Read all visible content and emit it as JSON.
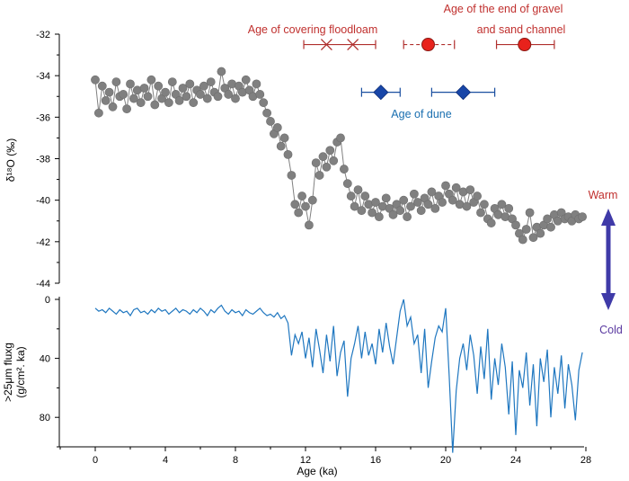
{
  "chart_data": [
    {
      "type": "scatter",
      "panel": "top",
      "ylabel": "δ¹⁸O (‰)",
      "ylim": [
        -44,
        -32
      ],
      "yticks": [
        -32,
        -34,
        -36,
        -38,
        -40,
        -42,
        -44
      ],
      "y_inverted": false,
      "series": [
        {
          "style": "gray circles joined by a thin line",
          "color": "#808080",
          "x": [
            0.0,
            0.2,
            0.4,
            0.6,
            0.8,
            1.0,
            1.2,
            1.4,
            1.6,
            1.8,
            2.0,
            2.2,
            2.4,
            2.6,
            2.8,
            3.0,
            3.2,
            3.4,
            3.6,
            3.8,
            4.0,
            4.2,
            4.4,
            4.6,
            4.8,
            5.0,
            5.2,
            5.4,
            5.6,
            5.8,
            6.0,
            6.2,
            6.4,
            6.6,
            6.8,
            7.0,
            7.2,
            7.4,
            7.6,
            7.8,
            8.0,
            8.2,
            8.4,
            8.6,
            8.8,
            9.0,
            9.2,
            9.4,
            9.6,
            9.8,
            10.0,
            10.2,
            10.4,
            10.6,
            10.8,
            11.0,
            11.2,
            11.4,
            11.6,
            11.8,
            12.0,
            12.2,
            12.4,
            12.6,
            12.8,
            13.0,
            13.2,
            13.4,
            13.6,
            13.8,
            14.0,
            14.2,
            14.4,
            14.6,
            14.8,
            15.0,
            15.2,
            15.4,
            15.6,
            15.8,
            16.0,
            16.2,
            16.4,
            16.6,
            16.8,
            17.0,
            17.2,
            17.4,
            17.6,
            17.8,
            18.0,
            18.2,
            18.4,
            18.6,
            18.8,
            19.0,
            19.2,
            19.4,
            19.6,
            19.8,
            20.0,
            20.2,
            20.4,
            20.6,
            20.8,
            21.0,
            21.2,
            21.4,
            21.6,
            21.8,
            22.0,
            22.2,
            22.4,
            22.6,
            22.8,
            23.0,
            23.2,
            23.4,
            23.6,
            23.8,
            24.0,
            24.2,
            24.4,
            24.6,
            24.8,
            25.0,
            25.2,
            25.4,
            25.6,
            25.8,
            26.0,
            26.2,
            26.4,
            26.6,
            26.8,
            27.0,
            27.2,
            27.4,
            27.6,
            27.8
          ],
          "y": [
            -34.2,
            -35.8,
            -34.5,
            -35.2,
            -34.8,
            -35.5,
            -34.3,
            -35.0,
            -34.9,
            -35.6,
            -34.4,
            -35.1,
            -34.7,
            -35.3,
            -34.6,
            -35.0,
            -34.2,
            -35.4,
            -34.5,
            -35.1,
            -34.8,
            -35.3,
            -34.3,
            -34.9,
            -35.2,
            -34.6,
            -35.0,
            -34.4,
            -35.3,
            -34.7,
            -34.9,
            -34.5,
            -35.1,
            -34.3,
            -34.8,
            -35.0,
            -33.8,
            -34.6,
            -34.9,
            -34.4,
            -35.1,
            -34.5,
            -34.8,
            -34.2,
            -34.7,
            -35.0,
            -34.4,
            -34.9,
            -35.3,
            -35.8,
            -36.2,
            -36.8,
            -36.5,
            -37.4,
            -37.0,
            -37.8,
            -38.8,
            -40.2,
            -40.6,
            -39.8,
            -40.3,
            -41.2,
            -40.0,
            -38.2,
            -38.8,
            -37.9,
            -38.4,
            -37.6,
            -38.1,
            -37.2,
            -37.0,
            -38.5,
            -39.2,
            -39.8,
            -40.3,
            -39.5,
            -40.5,
            -39.8,
            -40.2,
            -40.6,
            -40.1,
            -40.8,
            -40.3,
            -39.9,
            -40.4,
            -40.7,
            -40.2,
            -40.5,
            -40.0,
            -40.8,
            -40.3,
            -39.7,
            -40.1,
            -40.5,
            -39.9,
            -40.2,
            -39.6,
            -40.4,
            -39.8,
            -40.1,
            -39.3,
            -39.7,
            -40.0,
            -39.4,
            -40.2,
            -39.6,
            -40.3,
            -39.5,
            -40.1,
            -39.8,
            -40.6,
            -40.2,
            -40.9,
            -41.1,
            -40.4,
            -40.7,
            -40.2,
            -40.8,
            -40.4,
            -40.9,
            -41.2,
            -41.6,
            -41.9,
            -41.4,
            -40.6,
            -41.8,
            -41.3,
            -41.6,
            -41.2,
            -40.9,
            -41.3,
            -40.7,
            -41.0,
            -40.6,
            -40.9,
            -40.8,
            -41.0,
            -40.7,
            -40.9,
            -40.8
          ]
        }
      ],
      "dating": [
        {
          "label": "Age of covering floodloam",
          "color": "#b0302e",
          "marker": "x",
          "range_line": [
            11.9,
            16.0
          ],
          "points": [
            13.2,
            14.7
          ],
          "y": -32.5
        },
        {
          "label": "",
          "color": "#b0302e",
          "marker": "circle",
          "range_line": [
            17.6,
            20.5
          ],
          "dashed": true,
          "points": [
            19.0
          ],
          "y": -32.5
        },
        {
          "label": "Age of the end of gravel and sand channel",
          "color": "#b0302e",
          "marker": "circle",
          "range_line": [
            22.9,
            26.2
          ],
          "points": [
            24.5
          ],
          "y": -32.5
        },
        {
          "label": "Age of dune",
          "color": "#1a4fa0",
          "marker": "diamond",
          "range_line_1": [
            15.2,
            17.4
          ],
          "range_line_2": [
            19.2,
            22.8
          ],
          "points": [
            16.3,
            21.0
          ],
          "y": -34.8
        }
      ],
      "annotations": [
        {
          "text": "Age of covering floodloam",
          "color": "#c0302e"
        },
        {
          "text": "Age of the end of gravel",
          "color": "#c0302e"
        },
        {
          "text": "and sand channel",
          "color": "#c0302e"
        },
        {
          "text": "Age of dune",
          "color": "#1a6fb0"
        },
        {
          "text": "Warm",
          "color": "#c0302e"
        },
        {
          "text": "Cold",
          "color": "#5a3aa0"
        }
      ]
    },
    {
      "type": "line",
      "panel": "bottom",
      "xlabel": "Age (ka)",
      "xlim": [
        -2,
        28
      ],
      "xticks": [
        0,
        4,
        8,
        12,
        16,
        20,
        24,
        28
      ],
      "ylabel_line1": ">25μm fluxg",
      "ylabel_line2": "(g/cm². ka)",
      "ylim": [
        0,
        100
      ],
      "yticks": [
        0,
        40,
        80
      ],
      "y_inverted": true,
      "series": [
        {
          "color": "#1f77c0",
          "x": [
            0.0,
            0.2,
            0.4,
            0.6,
            0.8,
            1.0,
            1.2,
            1.4,
            1.6,
            1.8,
            2.0,
            2.2,
            2.4,
            2.6,
            2.8,
            3.0,
            3.2,
            3.4,
            3.6,
            3.8,
            4.0,
            4.2,
            4.4,
            4.6,
            4.8,
            5.0,
            5.2,
            5.4,
            5.6,
            5.8,
            6.0,
            6.2,
            6.4,
            6.6,
            6.8,
            7.0,
            7.2,
            7.4,
            7.6,
            7.8,
            8.0,
            8.2,
            8.4,
            8.6,
            8.8,
            9.0,
            9.2,
            9.4,
            9.6,
            9.8,
            10.0,
            10.2,
            10.4,
            10.6,
            10.8,
            11.0,
            11.2,
            11.4,
            11.6,
            11.8,
            12.0,
            12.2,
            12.4,
            12.6,
            12.8,
            13.0,
            13.2,
            13.4,
            13.6,
            13.8,
            14.0,
            14.2,
            14.4,
            14.6,
            14.8,
            15.0,
            15.2,
            15.4,
            15.6,
            15.8,
            16.0,
            16.2,
            16.4,
            16.6,
            16.8,
            17.0,
            17.2,
            17.4,
            17.6,
            17.8,
            18.0,
            18.2,
            18.4,
            18.6,
            18.8,
            19.0,
            19.2,
            19.4,
            19.6,
            19.8,
            20.0,
            20.2,
            20.4,
            20.6,
            20.8,
            21.0,
            21.2,
            21.4,
            21.6,
            21.8,
            22.0,
            22.2,
            22.4,
            22.6,
            22.8,
            23.0,
            23.2,
            23.4,
            23.6,
            23.8,
            24.0,
            24.2,
            24.4,
            24.6,
            24.8,
            25.0,
            25.2,
            25.4,
            25.6,
            25.8,
            26.0,
            26.2,
            26.4,
            26.6,
            26.8,
            27.0,
            27.2,
            27.4,
            27.6,
            27.8
          ],
          "y": [
            6,
            8,
            7,
            9,
            6,
            8,
            10,
            7,
            9,
            8,
            11,
            7,
            6,
            9,
            8,
            10,
            7,
            9,
            6,
            8,
            7,
            10,
            8,
            6,
            9,
            7,
            8,
            10,
            7,
            9,
            6,
            8,
            11,
            7,
            9,
            6,
            4,
            8,
            10,
            7,
            9,
            8,
            11,
            7,
            9,
            10,
            8,
            6,
            9,
            11,
            10,
            12,
            9,
            13,
            11,
            16,
            38,
            24,
            30,
            22,
            40,
            26,
            46,
            20,
            34,
            50,
            24,
            42,
            18,
            52,
            36,
            28,
            66,
            40,
            30,
            18,
            40,
            22,
            38,
            30,
            44,
            20,
            36,
            16,
            32,
            44,
            26,
            8,
            0,
            18,
            12,
            30,
            24,
            50,
            20,
            60,
            42,
            26,
            18,
            22,
            6,
            52,
            104,
            62,
            40,
            30,
            48,
            24,
            38,
            64,
            32,
            54,
            20,
            68,
            40,
            58,
            30,
            46,
            78,
            42,
            92,
            48,
            60,
            36,
            72,
            44,
            86,
            40,
            56,
            34,
            80,
            46,
            64,
            38,
            74,
            44,
            58,
            82,
            48,
            36
          ]
        }
      ]
    }
  ]
}
